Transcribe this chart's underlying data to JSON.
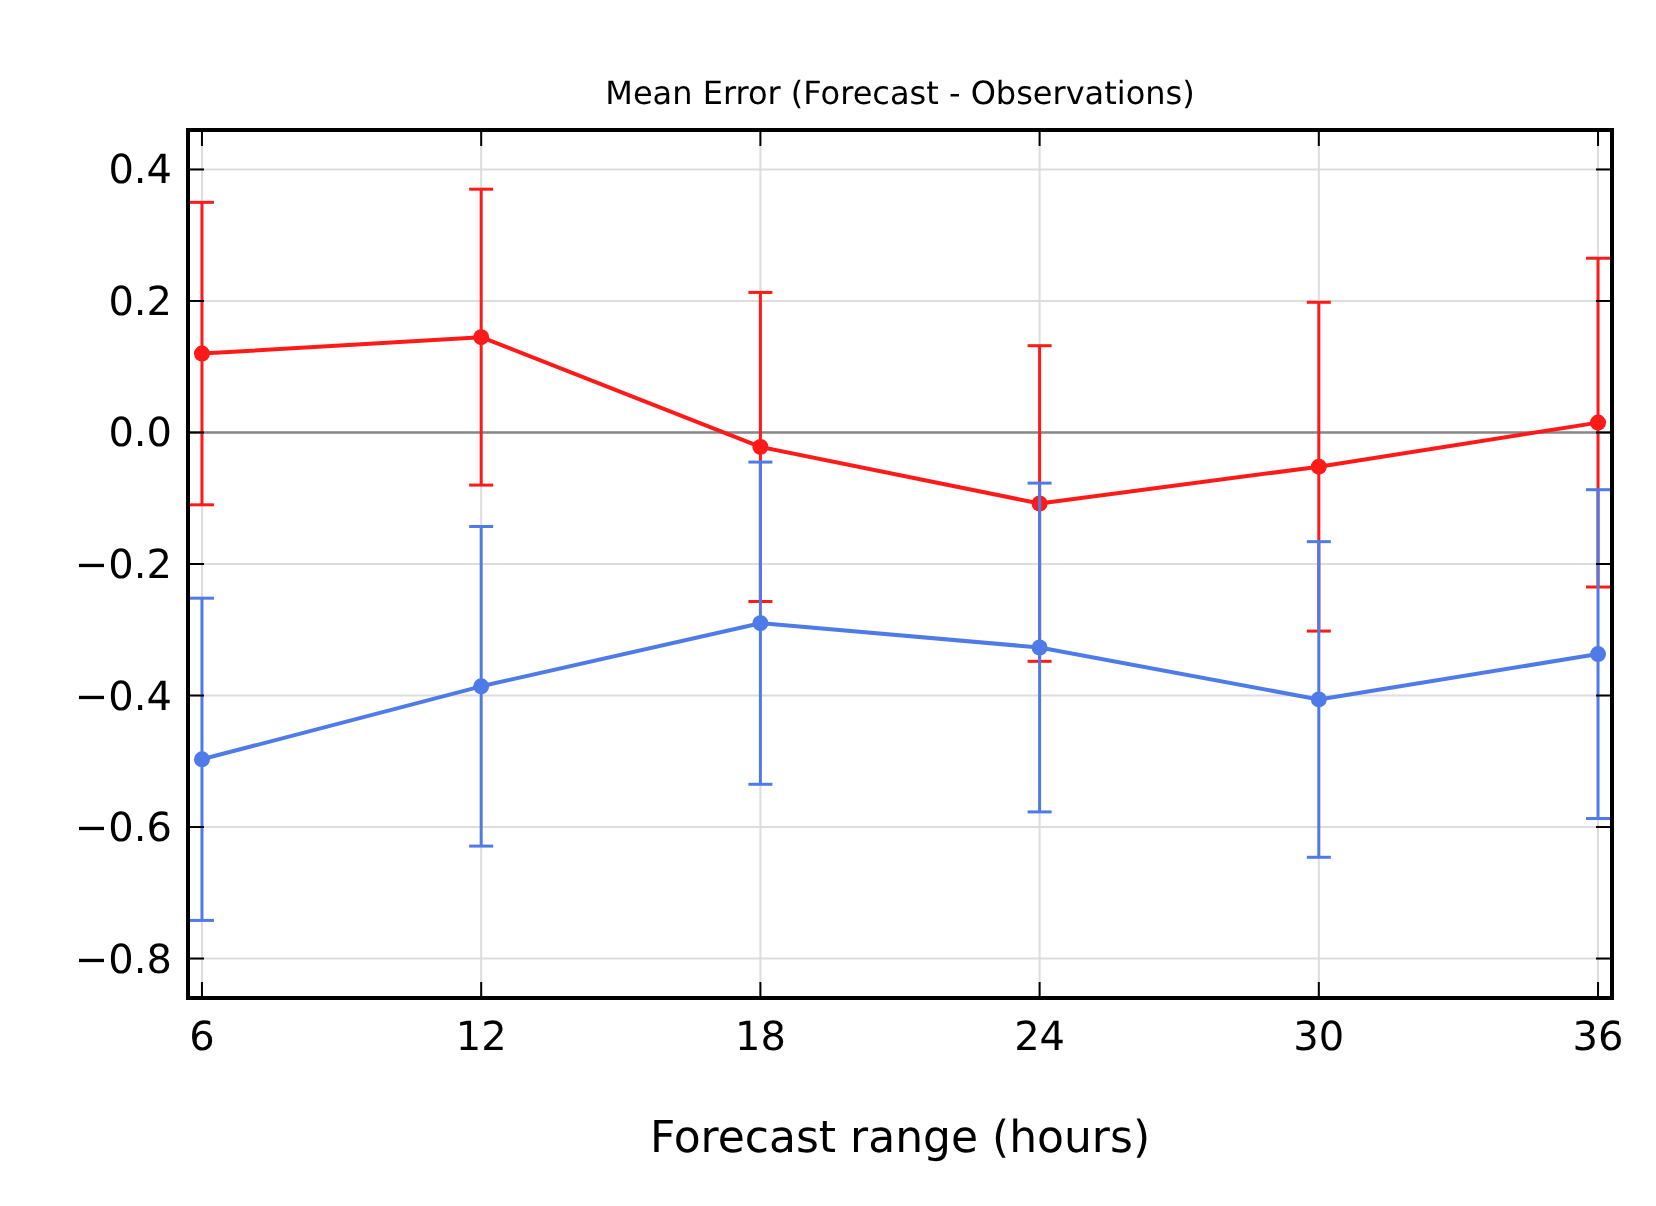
{
  "chart_data": {
    "type": "line",
    "title": "Mean Error (Forecast - Observations)",
    "xlabel": "Forecast range (hours)",
    "x": [
      6,
      12,
      18,
      24,
      30,
      36
    ],
    "series": [
      {
        "color": "#ff1a1a",
        "values": [
          0.12,
          0.145,
          -0.022,
          -0.108,
          -0.052,
          0.015
        ],
        "errors": [
          0.23,
          0.225,
          0.235,
          0.24,
          0.25,
          0.25
        ]
      },
      {
        "color": "#4f7be8",
        "values": [
          -0.497,
          -0.386,
          -0.29,
          -0.327,
          -0.406,
          -0.337
        ],
        "errors": [
          0.245,
          0.243,
          0.245,
          0.25,
          0.24,
          0.25
        ]
      }
    ],
    "xlim": [
      5.7,
      36.3
    ],
    "xticks": [
      6,
      12,
      18,
      24,
      30,
      36
    ],
    "ylim": [
      -0.86,
      0.46
    ],
    "yticks": [
      {
        "value": -0.8,
        "label": "−0.8"
      },
      {
        "value": -0.6,
        "label": "−0.6"
      },
      {
        "value": -0.4,
        "label": "−0.4"
      },
      {
        "value": -0.2,
        "label": "−0.2"
      },
      {
        "value": 0,
        "label": "0.0"
      },
      {
        "value": 0.2,
        "label": "0.2"
      },
      {
        "value": 0.4,
        "label": "0.4"
      }
    ],
    "ref_lines": [
      {
        "axis": "y",
        "value": 0,
        "color": "#888888"
      }
    ],
    "grid": true,
    "marker": "circle",
    "line_style": "solid"
  }
}
